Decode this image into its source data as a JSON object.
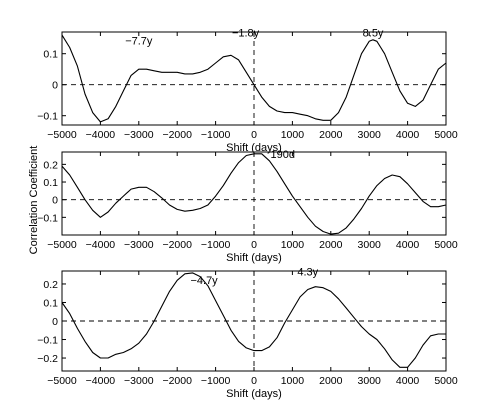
{
  "figure": {
    "ylabel": "Correlation Coefficient"
  },
  "chart_data": [
    {
      "type": "line",
      "xlabel": "Shift (days)",
      "xlim": [
        -5000,
        5000
      ],
      "ylim": [
        -0.13,
        0.17
      ],
      "xticks": [
        -5000,
        -4000,
        -3000,
        -2000,
        -1000,
        0,
        1000,
        2000,
        3000,
        4000,
        5000
      ],
      "yticks": [
        -0.1,
        0,
        0.1
      ],
      "ytick_labels": [
        "−0.1",
        "0",
        "0.1"
      ],
      "grid": false,
      "reference_lines": {
        "y": 0,
        "x": 0,
        "style": "dashed"
      },
      "annotations": [
        {
          "text": "−7.7y",
          "x": -3000,
          "y": 0.13
        },
        {
          "text": "−1.8y",
          "x": -220,
          "y": 0.155
        },
        {
          "text": "8.5y",
          "x": 3100,
          "y": 0.155
        }
      ],
      "series": [
        {
          "x": [
            -5000,
            -4800,
            -4600,
            -4400,
            -4200,
            -4000,
            -3800,
            -3600,
            -3400,
            -3200,
            -3000,
            -2800,
            -2600,
            -2400,
            -2200,
            -2000,
            -1800,
            -1600,
            -1400,
            -1200,
            -1000,
            -800,
            -600,
            -400,
            -200,
            0,
            200,
            400,
            600,
            800,
            1000,
            1200,
            1400,
            1600,
            1800,
            2000,
            2200,
            2400,
            2600,
            2800,
            3000,
            3100,
            3200,
            3400,
            3600,
            3800,
            4000,
            4200,
            4400,
            4600,
            4800,
            5000
          ],
          "values": [
            0.16,
            0.12,
            0.06,
            -0.03,
            -0.09,
            -0.12,
            -0.11,
            -0.07,
            -0.02,
            0.03,
            0.05,
            0.05,
            0.045,
            0.04,
            0.04,
            0.04,
            0.035,
            0.035,
            0.04,
            0.05,
            0.07,
            0.09,
            0.095,
            0.08,
            0.04,
            0.0,
            -0.04,
            -0.07,
            -0.085,
            -0.09,
            -0.09,
            -0.095,
            -0.1,
            -0.11,
            -0.115,
            -0.115,
            -0.09,
            -0.04,
            0.03,
            0.1,
            0.14,
            0.145,
            0.14,
            0.1,
            0.04,
            -0.02,
            -0.06,
            -0.07,
            -0.05,
            0.0,
            0.05,
            0.07
          ]
        }
      ]
    },
    {
      "type": "line",
      "xlabel": "Shift (days)",
      "xlim": [
        -5000,
        5000
      ],
      "ylim": [
        -0.2,
        0.27
      ],
      "xticks": [
        -5000,
        -4000,
        -3000,
        -2000,
        -1000,
        0,
        1000,
        2000,
        3000,
        4000,
        5000
      ],
      "yticks": [
        -0.1,
        0,
        0.1,
        0.2
      ],
      "ytick_labels": [
        "−0.1",
        "0",
        "0.1",
        "0.2"
      ],
      "grid": false,
      "reference_lines": {
        "y": 0,
        "x": 0,
        "style": "dashed"
      },
      "annotations": [
        {
          "text": "190d",
          "x": 750,
          "y": 0.235
        }
      ],
      "series": [
        {
          "x": [
            -5000,
            -4800,
            -4600,
            -4400,
            -4200,
            -4000,
            -3800,
            -3600,
            -3400,
            -3200,
            -3000,
            -2800,
            -2600,
            -2400,
            -2200,
            -2000,
            -1800,
            -1600,
            -1400,
            -1200,
            -1000,
            -800,
            -600,
            -400,
            -200,
            0,
            200,
            400,
            600,
            800,
            1000,
            1200,
            1400,
            1600,
            1800,
            2000,
            2200,
            2400,
            2600,
            2800,
            3000,
            3200,
            3400,
            3600,
            3800,
            4000,
            4200,
            4400,
            4600,
            4800,
            5000
          ],
          "values": [
            0.19,
            0.14,
            0.07,
            0.0,
            -0.06,
            -0.1,
            -0.07,
            -0.02,
            0.02,
            0.06,
            0.07,
            0.07,
            0.045,
            0.01,
            -0.03,
            -0.055,
            -0.065,
            -0.06,
            -0.05,
            -0.03,
            0.02,
            0.08,
            0.15,
            0.21,
            0.25,
            0.26,
            0.26,
            0.22,
            0.16,
            0.09,
            0.02,
            -0.04,
            -0.1,
            -0.15,
            -0.18,
            -0.195,
            -0.19,
            -0.16,
            -0.11,
            -0.05,
            0.02,
            0.08,
            0.12,
            0.14,
            0.13,
            0.09,
            0.04,
            -0.01,
            -0.04,
            -0.04,
            -0.03
          ]
        }
      ]
    },
    {
      "type": "line",
      "xlabel": "Shift (days)",
      "xlim": [
        -5000,
        5000
      ],
      "ylim": [
        -0.27,
        0.27
      ],
      "xticks": [
        -5000,
        -4000,
        -3000,
        -2000,
        -1000,
        0,
        1000,
        2000,
        3000,
        4000,
        5000
      ],
      "yticks": [
        -0.2,
        -0.1,
        0,
        0.1,
        0.2
      ],
      "ytick_labels": [
        "−0.2",
        "−0.1",
        "0",
        "0.1",
        "0.2"
      ],
      "grid": false,
      "reference_lines": {
        "y": 0,
        "x": 0,
        "style": "dashed"
      },
      "annotations": [
        {
          "text": "−4.7y",
          "x": -1300,
          "y": 0.2
        },
        {
          "text": "4.3y",
          "x": 1400,
          "y": 0.245
        }
      ],
      "series": [
        {
          "x": [
            -5000,
            -4800,
            -4600,
            -4400,
            -4200,
            -4000,
            -3800,
            -3600,
            -3400,
            -3200,
            -3000,
            -2800,
            -2600,
            -2400,
            -2200,
            -2000,
            -1800,
            -1600,
            -1400,
            -1200,
            -1000,
            -800,
            -600,
            -400,
            -200,
            0,
            200,
            400,
            600,
            800,
            1000,
            1200,
            1400,
            1600,
            1800,
            2000,
            2200,
            2400,
            2600,
            2800,
            3000,
            3200,
            3400,
            3600,
            3800,
            4000,
            4200,
            4400,
            4600,
            4800,
            5000
          ],
          "values": [
            0.1,
            0.04,
            -0.04,
            -0.11,
            -0.17,
            -0.2,
            -0.2,
            -0.18,
            -0.17,
            -0.15,
            -0.12,
            -0.07,
            0.0,
            0.08,
            0.16,
            0.22,
            0.255,
            0.26,
            0.24,
            0.19,
            0.11,
            0.03,
            -0.05,
            -0.11,
            -0.145,
            -0.16,
            -0.16,
            -0.14,
            -0.09,
            -0.01,
            0.06,
            0.13,
            0.17,
            0.185,
            0.18,
            0.16,
            0.12,
            0.07,
            0.02,
            -0.03,
            -0.07,
            -0.1,
            -0.15,
            -0.21,
            -0.25,
            -0.25,
            -0.2,
            -0.13,
            -0.08,
            -0.07,
            -0.07
          ]
        }
      ]
    }
  ]
}
